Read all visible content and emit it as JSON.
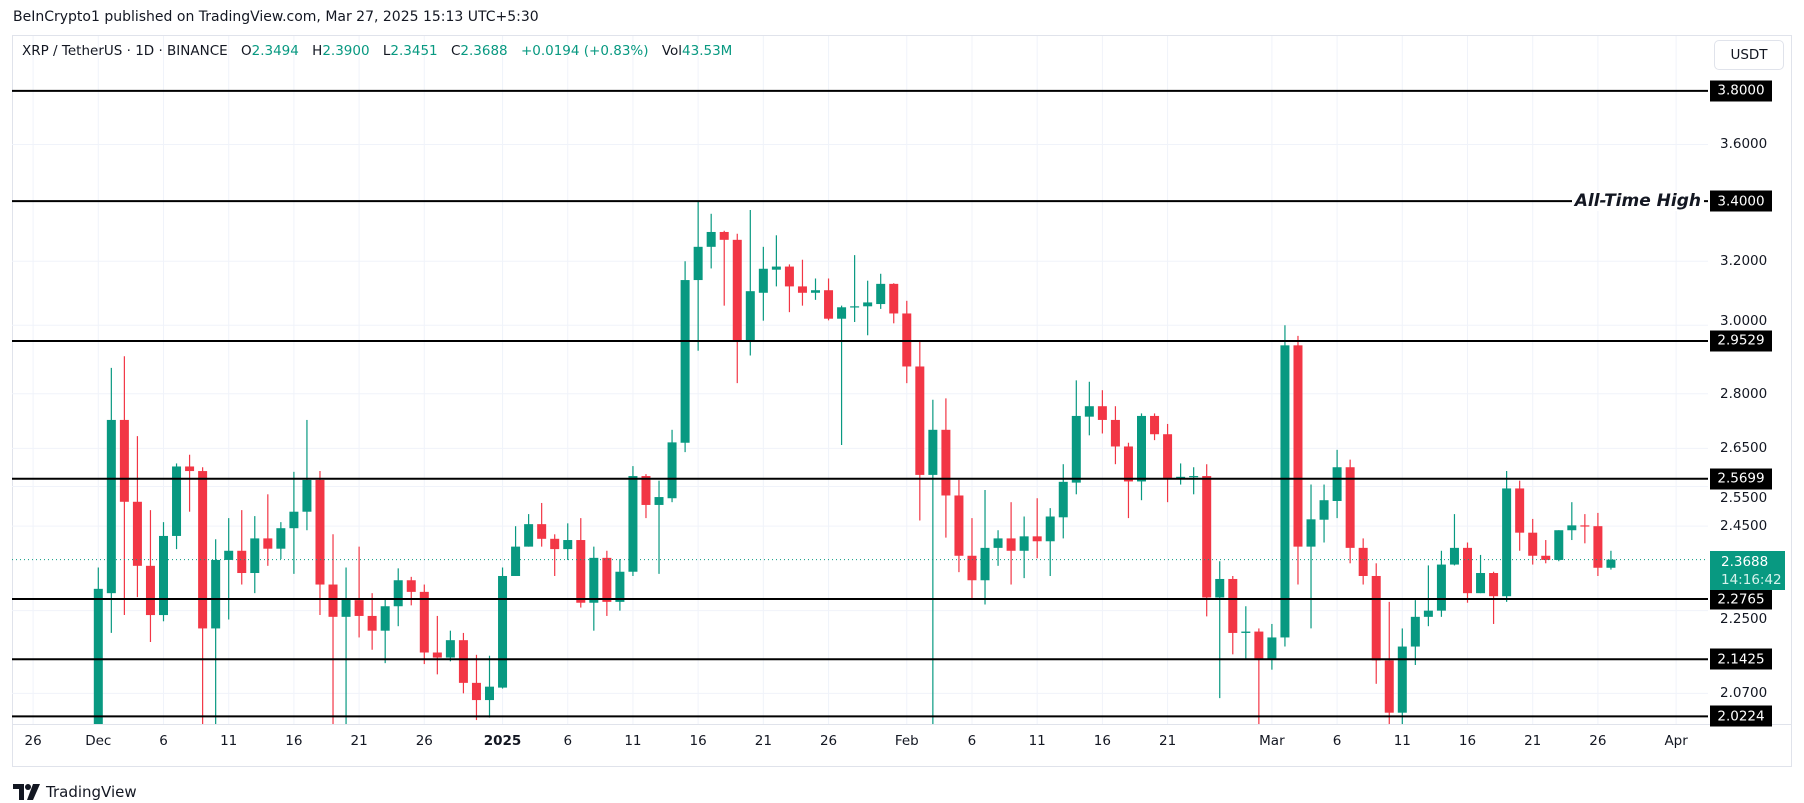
{
  "published": "BeInCrypto1 published on TradingView.com, Mar 27, 2025 15:13 UTC+5:30",
  "legend": {
    "symbol": "XRP / TetherUS · 1D · BINANCE",
    "o_label": "O",
    "o": "2.3494",
    "h_label": "H",
    "h": "2.3900",
    "l_label": "L",
    "l": "2.3451",
    "c_label": "C",
    "c": "2.3688",
    "change": "+0.0194 (+0.83%)",
    "vol_label": "Vol",
    "vol": "43.53M"
  },
  "currency_button": "USDT",
  "current_price": {
    "value": "2.3688",
    "countdown": "14:16:42"
  },
  "footer_logo": "TradingView",
  "chart_data": {
    "type": "candlestick",
    "scale": "log",
    "ylim": [
      2.007,
      4.016
    ],
    "grid": true,
    "colors": {
      "up": "#089981",
      "down": "#F23645",
      "level": "#000000"
    },
    "y_ticks": [
      "3.6000",
      "3.2000",
      "3.0000",
      "2.8000",
      "2.6500",
      "2.5500",
      "2.4500",
      "2.2500",
      "2.0700"
    ],
    "x_ticks": [
      {
        "label": "26",
        "date": "2024-11-26"
      },
      {
        "label": "Dec",
        "date": "2024-12-01"
      },
      {
        "label": "6",
        "date": "2024-12-06"
      },
      {
        "label": "11",
        "date": "2024-12-11"
      },
      {
        "label": "16",
        "date": "2024-12-16"
      },
      {
        "label": "21",
        "date": "2024-12-21"
      },
      {
        "label": "26",
        "date": "2024-12-26"
      },
      {
        "label": "2025",
        "date": "2025-01-01",
        "bold": true
      },
      {
        "label": "6",
        "date": "2025-01-06"
      },
      {
        "label": "11",
        "date": "2025-01-11"
      },
      {
        "label": "16",
        "date": "2025-01-16"
      },
      {
        "label": "21",
        "date": "2025-01-21"
      },
      {
        "label": "26",
        "date": "2025-01-26"
      },
      {
        "label": "Feb",
        "date": "2025-02-01"
      },
      {
        "label": "6",
        "date": "2025-02-06"
      },
      {
        "label": "11",
        "date": "2025-02-11"
      },
      {
        "label": "16",
        "date": "2025-02-16"
      },
      {
        "label": "21",
        "date": "2025-02-21"
      },
      {
        "label": "Mar",
        "date": "2025-03-01"
      },
      {
        "label": "6",
        "date": "2025-03-06"
      },
      {
        "label": "11",
        "date": "2025-03-11"
      },
      {
        "label": "16",
        "date": "2025-03-16"
      },
      {
        "label": "21",
        "date": "2025-03-21"
      },
      {
        "label": "26",
        "date": "2025-03-26"
      },
      {
        "label": "Apr",
        "date": "2025-04-01"
      }
    ],
    "levels": [
      {
        "value": "3.8000"
      },
      {
        "value": "3.4000",
        "annotation": "All-Time High"
      },
      {
        "value": "2.9529"
      },
      {
        "value": "2.5699"
      },
      {
        "value": "2.2765"
      },
      {
        "value": "2.1425"
      },
      {
        "value": "2.0224"
      }
    ],
    "candle_fields": [
      "date",
      "open",
      "high",
      "low",
      "close"
    ],
    "candles": [
      [
        "2024-12-01",
        1.9,
        2.35,
        1.88,
        2.3
      ],
      [
        "2024-12-02",
        2.29,
        2.874,
        2.2,
        2.727
      ],
      [
        "2024-12-03",
        2.727,
        2.908,
        2.24,
        2.511
      ],
      [
        "2024-12-04",
        2.511,
        2.683,
        2.281,
        2.354
      ],
      [
        "2024-12-05",
        2.354,
        2.49,
        2.18,
        2.24
      ],
      [
        "2024-12-06",
        2.24,
        2.46,
        2.226,
        2.426
      ],
      [
        "2024-12-07",
        2.426,
        2.61,
        2.394,
        2.602
      ],
      [
        "2024-12-08",
        2.602,
        2.633,
        2.486,
        2.59
      ],
      [
        "2024-12-09",
        2.59,
        2.6,
        1.95,
        2.21
      ],
      [
        "2024-12-10",
        2.21,
        2.418,
        1.93,
        2.368
      ],
      [
        "2024-12-11",
        2.368,
        2.47,
        2.23,
        2.39
      ],
      [
        "2024-12-12",
        2.39,
        2.49,
        2.31,
        2.337
      ],
      [
        "2024-12-13",
        2.337,
        2.475,
        2.29,
        2.42
      ],
      [
        "2024-12-14",
        2.42,
        2.53,
        2.354,
        2.395
      ],
      [
        "2024-12-15",
        2.395,
        2.46,
        2.37,
        2.445
      ],
      [
        "2024-12-16",
        2.445,
        2.588,
        2.335,
        2.486
      ],
      [
        "2024-12-17",
        2.486,
        2.727,
        2.44,
        2.567
      ],
      [
        "2024-12-18",
        2.567,
        2.59,
        2.24,
        2.31
      ],
      [
        "2024-12-19",
        2.31,
        2.43,
        2.0,
        2.236
      ],
      [
        "2024-12-20",
        2.236,
        2.35,
        1.97,
        2.276
      ],
      [
        "2024-12-21",
        2.274,
        2.4,
        2.19,
        2.238
      ],
      [
        "2024-12-22",
        2.238,
        2.29,
        2.163,
        2.205
      ],
      [
        "2024-12-23",
        2.205,
        2.275,
        2.134,
        2.26
      ],
      [
        "2024-12-24",
        2.26,
        2.348,
        2.215,
        2.32
      ],
      [
        "2024-12-25",
        2.32,
        2.328,
        2.262,
        2.293
      ],
      [
        "2024-12-26",
        2.293,
        2.31,
        2.132,
        2.157
      ],
      [
        "2024-12-27",
        2.157,
        2.238,
        2.11,
        2.146
      ],
      [
        "2024-12-28",
        2.146,
        2.205,
        2.138,
        2.184
      ],
      [
        "2024-12-29",
        2.184,
        2.2,
        2.07,
        2.092
      ],
      [
        "2024-12-30",
        2.092,
        2.152,
        2.015,
        2.056
      ],
      [
        "2024-12-31",
        2.056,
        2.15,
        2.02,
        2.084
      ],
      [
        "2025-01-01",
        2.082,
        2.35,
        2.08,
        2.33
      ],
      [
        "2025-01-02",
        2.33,
        2.45,
        2.33,
        2.4
      ],
      [
        "2025-01-03",
        2.4,
        2.48,
        2.4,
        2.455
      ],
      [
        "2025-01-04",
        2.455,
        2.508,
        2.4,
        2.419
      ],
      [
        "2025-01-05",
        2.419,
        2.43,
        2.33,
        2.394
      ],
      [
        "2025-01-06",
        2.394,
        2.457,
        2.368,
        2.416
      ],
      [
        "2025-01-07",
        2.416,
        2.47,
        2.257,
        2.268
      ],
      [
        "2025-01-08",
        2.268,
        2.4,
        2.205,
        2.373
      ],
      [
        "2025-01-09",
        2.373,
        2.39,
        2.238,
        2.27
      ],
      [
        "2025-01-10",
        2.27,
        2.37,
        2.25,
        2.34
      ],
      [
        "2025-01-11",
        2.34,
        2.603,
        2.33,
        2.577
      ],
      [
        "2025-01-12",
        2.577,
        2.582,
        2.47,
        2.503
      ],
      [
        "2025-01-13",
        2.503,
        2.565,
        2.335,
        2.523
      ],
      [
        "2025-01-14",
        2.52,
        2.7,
        2.51,
        2.666
      ],
      [
        "2025-01-15",
        2.665,
        3.2,
        2.64,
        3.14
      ],
      [
        "2025-01-16",
        3.14,
        3.4,
        2.924,
        3.247
      ],
      [
        "2025-01-17",
        3.247,
        3.357,
        3.177,
        3.296
      ],
      [
        "2025-01-18",
        3.296,
        3.3,
        3.06,
        3.27
      ],
      [
        "2025-01-19",
        3.27,
        3.29,
        2.83,
        2.955
      ],
      [
        "2025-01-20",
        2.955,
        3.37,
        2.91,
        3.105
      ],
      [
        "2025-01-21",
        3.1,
        3.247,
        3.014,
        3.176
      ],
      [
        "2025-01-22",
        3.173,
        3.285,
        3.12,
        3.183
      ],
      [
        "2025-01-23",
        3.183,
        3.19,
        3.04,
        3.12
      ],
      [
        "2025-01-24",
        3.12,
        3.205,
        3.06,
        3.1
      ],
      [
        "2025-01-25",
        3.1,
        3.145,
        3.078,
        3.108
      ],
      [
        "2025-01-26",
        3.108,
        3.145,
        3.015,
        3.02
      ],
      [
        "2025-01-27",
        3.02,
        3.06,
        2.659,
        3.055
      ],
      [
        "2025-01-28",
        3.055,
        3.22,
        3.01,
        3.058
      ],
      [
        "2025-01-29",
        3.058,
        3.138,
        2.97,
        3.07
      ],
      [
        "2025-01-30",
        3.065,
        3.16,
        3.05,
        3.128
      ],
      [
        "2025-01-31",
        3.128,
        3.13,
        3.006,
        3.036
      ],
      [
        "2025-02-01",
        3.036,
        3.075,
        2.83,
        2.878
      ],
      [
        "2025-02-02",
        2.878,
        2.95,
        2.464,
        2.58
      ],
      [
        "2025-02-03",
        2.58,
        2.783,
        1.77,
        2.7
      ],
      [
        "2025-02-04",
        2.7,
        2.787,
        2.422,
        2.527
      ],
      [
        "2025-02-05",
        2.527,
        2.567,
        2.339,
        2.378
      ],
      [
        "2025-02-06",
        2.378,
        2.47,
        2.275,
        2.32
      ],
      [
        "2025-02-07",
        2.32,
        2.541,
        2.264,
        2.397
      ],
      [
        "2025-02-08",
        2.397,
        2.44,
        2.354,
        2.42
      ],
      [
        "2025-02-09",
        2.42,
        2.51,
        2.31,
        2.39
      ],
      [
        "2025-02-10",
        2.39,
        2.474,
        2.325,
        2.425
      ],
      [
        "2025-02-11",
        2.425,
        2.52,
        2.372,
        2.413
      ],
      [
        "2025-02-12",
        2.413,
        2.495,
        2.33,
        2.474
      ],
      [
        "2025-02-13",
        2.472,
        2.608,
        2.42,
        2.562
      ],
      [
        "2025-02-14",
        2.56,
        2.838,
        2.53,
        2.738
      ],
      [
        "2025-02-15",
        2.736,
        2.834,
        2.685,
        2.765
      ],
      [
        "2025-02-16",
        2.765,
        2.81,
        2.69,
        2.727
      ],
      [
        "2025-02-17",
        2.727,
        2.765,
        2.608,
        2.655
      ],
      [
        "2025-02-18",
        2.655,
        2.665,
        2.47,
        2.563
      ],
      [
        "2025-02-19",
        2.563,
        2.745,
        2.515,
        2.738
      ],
      [
        "2025-02-20",
        2.738,
        2.745,
        2.672,
        2.688
      ],
      [
        "2025-02-21",
        2.688,
        2.716,
        2.51,
        2.572
      ],
      [
        "2025-02-22",
        2.572,
        2.61,
        2.555,
        2.575
      ],
      [
        "2025-02-23",
        2.575,
        2.6,
        2.53,
        2.577
      ],
      [
        "2025-02-24",
        2.577,
        2.608,
        2.237,
        2.28
      ],
      [
        "2025-02-25",
        2.28,
        2.365,
        2.06,
        2.323
      ],
      [
        "2025-02-26",
        2.323,
        2.33,
        2.153,
        2.2
      ],
      [
        "2025-02-27",
        2.2,
        2.26,
        2.143,
        2.203
      ],
      [
        "2025-02-28",
        2.203,
        2.21,
        1.99,
        2.143
      ],
      [
        "2025-03-01",
        2.143,
        2.22,
        2.12,
        2.19
      ],
      [
        "2025-03-02",
        2.19,
        3.0,
        2.17,
        2.94
      ],
      [
        "2025-03-03",
        2.94,
        2.968,
        2.31,
        2.4
      ],
      [
        "2025-03-04",
        2.4,
        2.555,
        2.21,
        2.467
      ],
      [
        "2025-03-05",
        2.466,
        2.555,
        2.41,
        2.515
      ],
      [
        "2025-03-06",
        2.513,
        2.646,
        2.47,
        2.6
      ],
      [
        "2025-03-07",
        2.6,
        2.62,
        2.36,
        2.397
      ],
      [
        "2025-03-08",
        2.397,
        2.42,
        2.31,
        2.33
      ],
      [
        "2025-03-09",
        2.33,
        2.36,
        2.09,
        2.14
      ],
      [
        "2025-03-10",
        2.14,
        2.27,
        1.9,
        2.03
      ],
      [
        "2025-03-11",
        2.03,
        2.21,
        1.96,
        2.17
      ],
      [
        "2025-03-12",
        2.17,
        2.274,
        2.13,
        2.236
      ],
      [
        "2025-03-13",
        2.236,
        2.355,
        2.215,
        2.25
      ],
      [
        "2025-03-14",
        2.25,
        2.39,
        2.236,
        2.357
      ],
      [
        "2025-03-15",
        2.357,
        2.48,
        2.355,
        2.397
      ],
      [
        "2025-03-16",
        2.397,
        2.41,
        2.268,
        2.29
      ],
      [
        "2025-03-17",
        2.29,
        2.38,
        2.29,
        2.337
      ],
      [
        "2025-03-18",
        2.337,
        2.34,
        2.22,
        2.283
      ],
      [
        "2025-03-19",
        2.283,
        2.59,
        2.27,
        2.545
      ],
      [
        "2025-03-20",
        2.545,
        2.565,
        2.39,
        2.434
      ],
      [
        "2025-03-21",
        2.434,
        2.468,
        2.357,
        2.378
      ],
      [
        "2025-03-22",
        2.378,
        2.416,
        2.36,
        2.368
      ],
      [
        "2025-03-23",
        2.368,
        2.44,
        2.365,
        2.44
      ],
      [
        "2025-03-24",
        2.44,
        2.51,
        2.416,
        2.452
      ],
      [
        "2025-03-25",
        2.452,
        2.48,
        2.408,
        2.45
      ],
      [
        "2025-03-26",
        2.45,
        2.483,
        2.33,
        2.3494
      ],
      [
        "2025-03-27",
        2.3494,
        2.39,
        2.3451,
        2.3688
      ]
    ]
  }
}
